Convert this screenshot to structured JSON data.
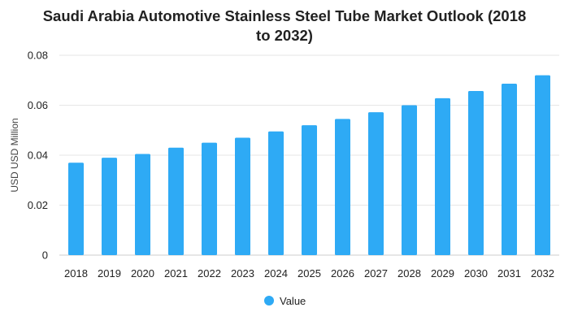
{
  "chart_data": {
    "type": "bar",
    "title_lines": [
      "Saudi Arabia Automotive Stainless Steel Tube Market Outlook (2018",
      "to 2032)"
    ],
    "xlabel": "",
    "ylabel": "USD USD Million",
    "categories": [
      "2018",
      "2019",
      "2020",
      "2021",
      "2022",
      "2023",
      "2024",
      "2025",
      "2026",
      "2027",
      "2028",
      "2029",
      "2030",
      "2031",
      "2032"
    ],
    "series": [
      {
        "name": "Value",
        "color": "#2eaaf5",
        "values": [
          0.037,
          0.039,
          0.0405,
          0.043,
          0.045,
          0.047,
          0.0495,
          0.052,
          0.0545,
          0.0572,
          0.06,
          0.0628,
          0.0657,
          0.0686,
          0.072
        ]
      }
    ],
    "ylim": [
      0,
      0.08
    ],
    "yticks": [
      0,
      0.02,
      0.04,
      0.06,
      0.08
    ],
    "ytick_labels": [
      "0",
      "0.02",
      "0.04",
      "0.06",
      "0.08"
    ],
    "grid": true,
    "legend_position": "bottom-center"
  }
}
